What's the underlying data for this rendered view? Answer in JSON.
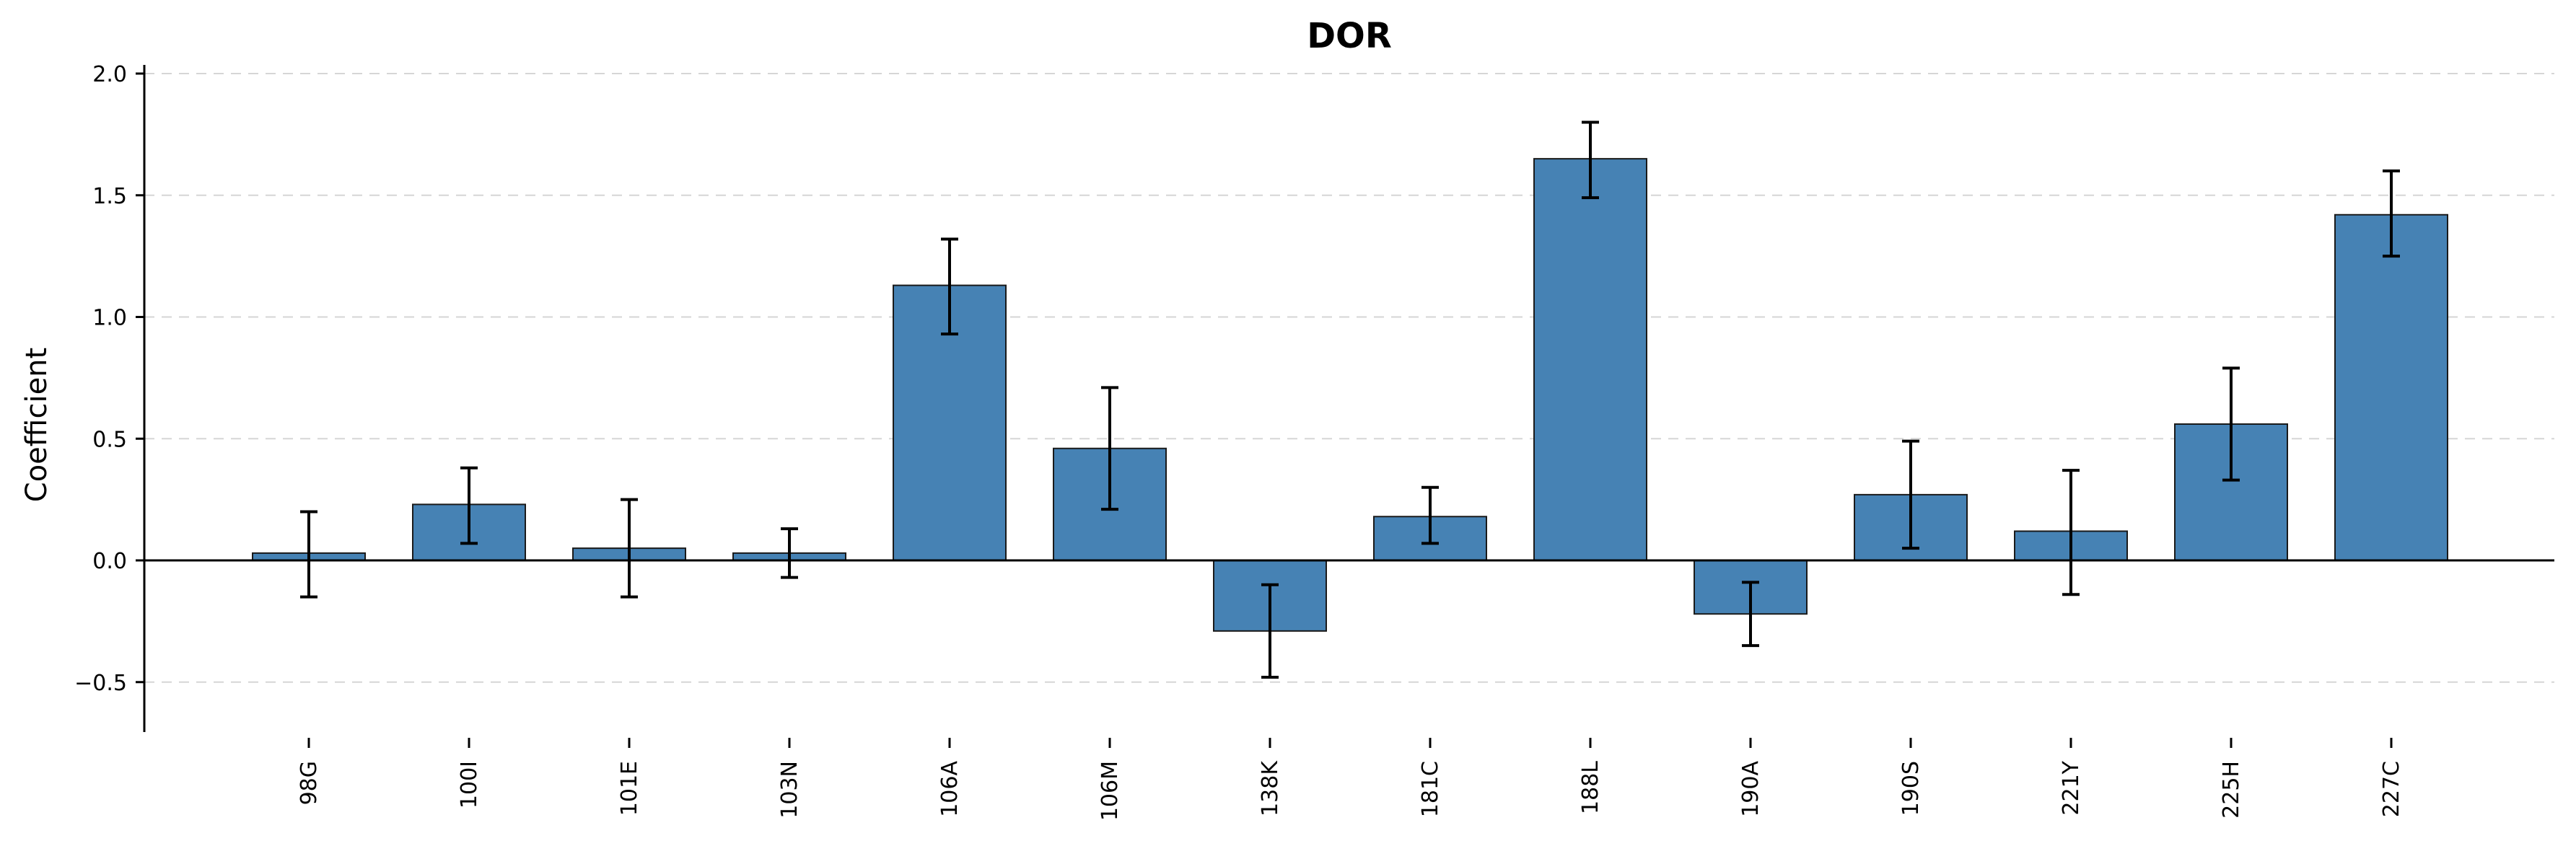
{
  "chart_data": {
    "type": "bar",
    "title": "DOR",
    "xlabel": "",
    "ylabel": "Coefficient",
    "ylim": [
      -0.7,
      2.02
    ],
    "yticks": [
      -0.5,
      0.0,
      0.5,
      1.0,
      1.5,
      2.0
    ],
    "ytick_labels": [
      "−0.5",
      "0.0",
      "0.5",
      "1.0",
      "1.5",
      "2.0"
    ],
    "grid": true,
    "bar_color": "#4682b4",
    "categories": [
      "98G",
      "100I",
      "101E",
      "103N",
      "106A",
      "106M",
      "138K",
      "181C",
      "188L",
      "190A",
      "190S",
      "221Y",
      "225H",
      "227C"
    ],
    "values": [
      0.03,
      0.23,
      0.05,
      0.03,
      1.13,
      0.46,
      -0.29,
      0.18,
      1.65,
      -0.22,
      0.27,
      0.12,
      0.56,
      1.42
    ],
    "error_low": [
      -0.15,
      0.07,
      -0.15,
      -0.07,
      0.93,
      0.21,
      -0.48,
      0.07,
      1.49,
      -0.35,
      0.05,
      -0.14,
      0.33,
      1.25
    ],
    "error_high": [
      0.2,
      0.38,
      0.25,
      0.13,
      1.32,
      0.71,
      -0.1,
      0.3,
      1.8,
      -0.09,
      0.49,
      0.37,
      0.79,
      1.6
    ]
  }
}
